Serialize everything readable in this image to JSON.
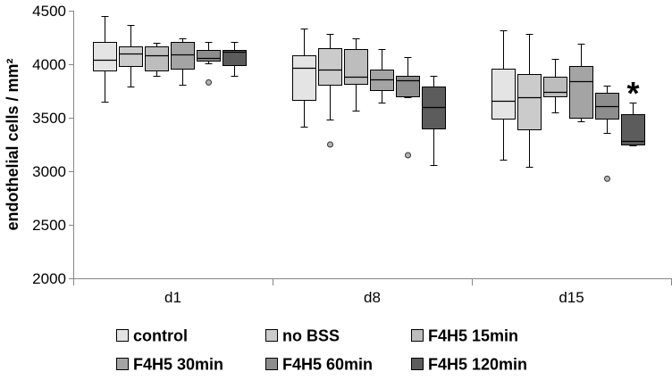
{
  "chart_data": {
    "type": "box",
    "ylabel": "endothelial cells / mm²",
    "ylim": [
      2000,
      4500
    ],
    "yticks": [
      2000,
      2500,
      3000,
      3500,
      4000,
      4500
    ],
    "grid": false,
    "legend_position": "bottom",
    "categories": [
      "d1",
      "d8",
      "d15"
    ],
    "series": [
      {
        "name": "control",
        "color": "#e4e4e4",
        "boxes": [
          {
            "min": 3650,
            "q1": 3940,
            "median": 4040,
            "q3": 4210,
            "max": 4450,
            "outliers": []
          },
          {
            "min": 3420,
            "q1": 3670,
            "median": 3970,
            "q3": 4080,
            "max": 4330,
            "outliers": []
          },
          {
            "min": 3110,
            "q1": 3490,
            "median": 3660,
            "q3": 3960,
            "max": 4320,
            "outliers": []
          }
        ]
      },
      {
        "name": "no BSS",
        "color": "#cbcbcb",
        "boxes": [
          {
            "min": 3790,
            "q1": 3980,
            "median": 4100,
            "q3": 4170,
            "max": 4370,
            "outliers": []
          },
          {
            "min": 3480,
            "q1": 3810,
            "median": 3950,
            "q3": 4150,
            "max": 4280,
            "outliers": [
              3250
            ]
          },
          {
            "min": 3040,
            "q1": 3390,
            "median": 3690,
            "q3": 3910,
            "max": 4280,
            "outliers": []
          }
        ]
      },
      {
        "name": "F4H5 15min",
        "color": "#bdbdbd",
        "boxes": [
          {
            "min": 3890,
            "q1": 3940,
            "median": 4080,
            "q3": 4170,
            "max": 4200,
            "outliers": []
          },
          {
            "min": 3570,
            "q1": 3820,
            "median": 3880,
            "q3": 4140,
            "max": 4240,
            "outliers": []
          },
          {
            "min": 3550,
            "q1": 3700,
            "median": 3740,
            "q3": 3880,
            "max": 4050,
            "outliers": []
          }
        ]
      },
      {
        "name": "F4H5 30min",
        "color": "#a4a4a4",
        "boxes": [
          {
            "min": 3810,
            "q1": 3960,
            "median": 4090,
            "q3": 4210,
            "max": 4240,
            "outliers": []
          },
          {
            "min": 3640,
            "q1": 3760,
            "median": 3860,
            "q3": 3950,
            "max": 4140,
            "outliers": []
          },
          {
            "min": 3470,
            "q1": 3500,
            "median": 3840,
            "q3": 3980,
            "max": 4190,
            "outliers": []
          }
        ]
      },
      {
        "name": "F4H5 60min",
        "color": "#8d8d8d",
        "boxes": [
          {
            "min": 4010,
            "q1": 4030,
            "median": 4060,
            "q3": 4130,
            "max": 4210,
            "outliers": [
              3830
            ]
          },
          {
            "min": 3690,
            "q1": 3700,
            "median": 3850,
            "q3": 3890,
            "max": 4070,
            "outliers": [
              3150
            ]
          },
          {
            "min": 3360,
            "q1": 3490,
            "median": 3610,
            "q3": 3730,
            "max": 3800,
            "outliers": [
              2930
            ]
          }
        ]
      },
      {
        "name": "F4H5 120min",
        "color": "#5c5c5c",
        "boxes": [
          {
            "min": 3890,
            "q1": 3990,
            "median": 4120,
            "q3": 4130,
            "max": 4210,
            "outliers": []
          },
          {
            "min": 3060,
            "q1": 3400,
            "median": 3600,
            "q3": 3790,
            "max": 3890,
            "outliers": []
          },
          {
            "min": 3240,
            "q1": 3250,
            "median": 3280,
            "q3": 3530,
            "max": 3640,
            "outliers": []
          }
        ]
      }
    ],
    "annotations": [
      {
        "text": "*",
        "category": "d15",
        "series": "F4H5 120min"
      }
    ]
  }
}
